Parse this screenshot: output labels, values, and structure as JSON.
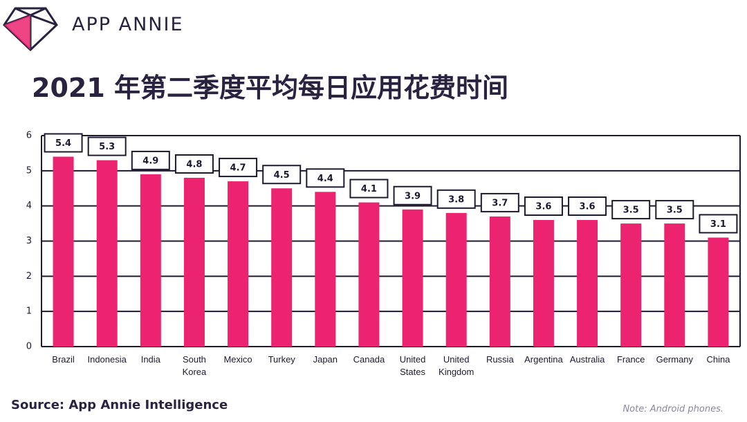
{
  "brand": "APP ANNIE",
  "chart_data": {
    "type": "bar",
    "title": "2021 年第二季度平均每日应用花费时间",
    "categories": [
      "Brazil",
      "Indonesia",
      "India",
      "South Korea",
      "Mexico",
      "Turkey",
      "Japan",
      "Canada",
      "United States",
      "United Kingdom",
      "Russia",
      "Argentina",
      "Australia",
      "France",
      "Germany",
      "China"
    ],
    "values": [
      5.4,
      5.3,
      4.9,
      4.8,
      4.7,
      4.5,
      4.4,
      4.1,
      3.9,
      3.8,
      3.7,
      3.6,
      3.6,
      3.5,
      3.5,
      3.1
    ],
    "color": "#ec2470",
    "ylim": [
      0,
      6
    ],
    "yticks": [
      0,
      1,
      2,
      3,
      4,
      5,
      6
    ],
    "grid": true
  },
  "footer": {
    "source": "Source: App Annie Intelligence",
    "note": "Note: Android phones."
  }
}
